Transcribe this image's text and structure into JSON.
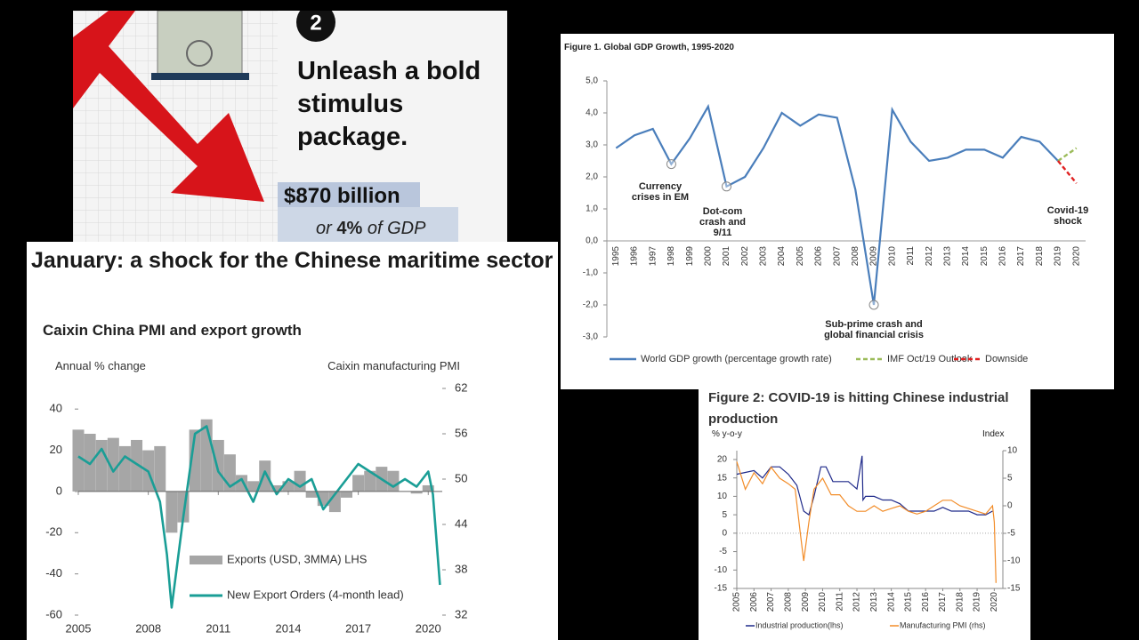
{
  "infographic": {
    "number": "2",
    "headline": "Unleash a bold stimulus package.",
    "amount": "$870 billion",
    "share_prefix": "or",
    "share_value": "4%",
    "share_suffix": "of GDP"
  },
  "chart_data": [
    {
      "type": "bar-line",
      "title": "January: a shock for the Chinese maritime sector",
      "subtitle": "Caixin China PMI and export growth",
      "ylabel": "Annual % change",
      "y2label": "Caixin manufacturing PMI",
      "xlim": [
        2005,
        2020.6
      ],
      "xticks": [
        2005,
        2008,
        2011,
        2014,
        2017,
        2020
      ],
      "ylim": [
        -60,
        50
      ],
      "yticks": [
        40,
        20,
        0,
        -20,
        -40,
        -60
      ],
      "y2lim": [
        32,
        62
      ],
      "y2ticks": [
        62,
        56,
        50,
        44,
        38,
        32
      ],
      "series": [
        {
          "name": "Exports (USD, 3MMA) LHS",
          "color": "#a6a6a6",
          "x": [
            2005,
            2005.5,
            2006,
            2006.5,
            2007,
            2007.5,
            2008,
            2008.5,
            2009,
            2009.5,
            2010,
            2010.5,
            2011,
            2011.5,
            2012,
            2012.5,
            2013,
            2013.5,
            2014,
            2014.5,
            2015,
            2015.5,
            2016,
            2016.5,
            2017,
            2017.5,
            2018,
            2018.5,
            2019,
            2019.5,
            2020
          ],
          "values": [
            30,
            28,
            25,
            26,
            22,
            25,
            20,
            22,
            -20,
            -15,
            30,
            35,
            25,
            18,
            8,
            5,
            15,
            3,
            5,
            10,
            -3,
            -7,
            -10,
            -3,
            8,
            10,
            12,
            10,
            0,
            -1,
            3
          ]
        },
        {
          "name": "New Export Orders (4-month lead)",
          "color": "#1a9e96",
          "axis": "y2",
          "x": [
            2005,
            2005.5,
            2006,
            2006.5,
            2007,
            2007.5,
            2008,
            2008.5,
            2008.8,
            2009,
            2009.5,
            2010,
            2010.5,
            2011,
            2011.5,
            2012,
            2012.5,
            2013,
            2013.5,
            2014,
            2014.5,
            2015,
            2015.5,
            2016,
            2016.5,
            2017,
            2017.5,
            2018,
            2018.5,
            2019,
            2019.5,
            2020,
            2020.2,
            2020.5
          ],
          "values": [
            53,
            52,
            54,
            51,
            53,
            52,
            51,
            47,
            40,
            33,
            45,
            56,
            57,
            51,
            49,
            50,
            47,
            51,
            48,
            50,
            49,
            50,
            46,
            48,
            50,
            52,
            51,
            50,
            49,
            50,
            49,
            51,
            48,
            36
          ]
        }
      ]
    },
    {
      "type": "line",
      "title": "Figure 1. Global GDP Growth, 1995-2020",
      "categories": [
        "1995",
        "1996",
        "1997",
        "1998",
        "1999",
        "2000",
        "2001",
        "2002",
        "2003",
        "2004",
        "2005",
        "2006",
        "2007",
        "2008",
        "2009",
        "2010",
        "2011",
        "2012",
        "2013",
        "2014",
        "2015",
        "2016",
        "2017",
        "2018",
        "2019",
        "2020"
      ],
      "ylim": [
        -3,
        5
      ],
      "yticks": [
        {
          "value": 5,
          "label": "5,0"
        },
        {
          "value": 4,
          "label": "4,0"
        },
        {
          "value": 3,
          "label": "3,0"
        },
        {
          "value": 2,
          "label": "2,0"
        },
        {
          "value": 1,
          "label": "1,0"
        },
        {
          "value": 0,
          "label": "0,0"
        },
        {
          "value": -1,
          "label": "-1,0"
        },
        {
          "value": -2,
          "label": "-2,0"
        },
        {
          "value": -3,
          "label": "-3,0"
        }
      ],
      "annotations": [
        "Currency crises in EM",
        "Dot-com crash and 9/11",
        "Sub-prime  crash and global financial crisis",
        "Covid-19 shock"
      ],
      "series": [
        {
          "name": "World GDP growth (percentage growth rate)",
          "color": "#4a7ebb",
          "values": [
            2.9,
            3.3,
            3.5,
            2.4,
            3.2,
            4.2,
            1.7,
            2.0,
            2.9,
            4.0,
            3.6,
            3.95,
            3.85,
            1.6,
            -2.0,
            4.1,
            3.1,
            2.5,
            2.6,
            2.85,
            2.85,
            2.6,
            3.25,
            3.1,
            2.5,
            null
          ]
        },
        {
          "name": "IMF Oct/19 Outlook",
          "color": "#9bbb59",
          "dashed": true,
          "values": [
            null,
            null,
            null,
            null,
            null,
            null,
            null,
            null,
            null,
            null,
            null,
            null,
            null,
            null,
            null,
            null,
            null,
            null,
            null,
            null,
            null,
            null,
            null,
            null,
            2.5,
            2.9
          ]
        },
        {
          "name": "Downside",
          "color": "#e02020",
          "dashed": true,
          "values": [
            null,
            null,
            null,
            null,
            null,
            null,
            null,
            null,
            null,
            null,
            null,
            null,
            null,
            null,
            null,
            null,
            null,
            null,
            null,
            null,
            null,
            null,
            null,
            null,
            2.5,
            1.8
          ]
        }
      ]
    },
    {
      "type": "line",
      "title": "Figure 2: COVID-19 is hitting Chinese industrial production",
      "ylabel": "% y-o-y",
      "y2label": "Index",
      "xlim": [
        2005,
        2020.5
      ],
      "xticks": [
        2005,
        2006,
        2007,
        2008,
        2009,
        2010,
        2011,
        2012,
        2013,
        2014,
        2015,
        2016,
        2017,
        2018,
        2019,
        2020
      ],
      "ylim": [
        -15,
        22.4
      ],
      "yticks": [
        20,
        15,
        10,
        5,
        0,
        -5,
        -10,
        -15
      ],
      "y2lim": [
        -15,
        10
      ],
      "y2ticks": [
        10,
        5,
        0,
        -5,
        -10,
        -15
      ],
      "series": [
        {
          "name": "Industrial production(lhs)",
          "color": "#1f2a8a",
          "x": [
            2005,
            2005.5,
            2006,
            2006.5,
            2007,
            2007.5,
            2008,
            2008.5,
            2008.9,
            2009.2,
            2009.5,
            2009.9,
            2010.2,
            2010.6,
            2011,
            2011.5,
            2012,
            2012.3,
            2012.35,
            2012.5,
            2013,
            2013.5,
            2014,
            2014.5,
            2015,
            2015.5,
            2016,
            2016.5,
            2017,
            2017.5,
            2018,
            2018.5,
            2019,
            2019.5,
            2019.9
          ],
          "values": [
            16,
            16.5,
            17,
            15,
            18,
            18,
            16,
            13,
            6,
            5,
            10,
            18,
            18,
            14,
            14,
            14,
            12,
            21,
            9,
            10,
            10,
            9,
            9,
            8,
            6,
            6,
            6,
            6,
            7,
            6,
            6,
            6,
            5,
            5,
            6
          ]
        },
        {
          "name": "Manufacturing PMI (rhs)",
          "color": "#f28c28",
          "axis": "y2",
          "x": [
            2005,
            2005.5,
            2006,
            2006.5,
            2007,
            2007.5,
            2008,
            2008.4,
            2008.7,
            2008.9,
            2009.2,
            2009.5,
            2010,
            2010.5,
            2011,
            2011.5,
            2012,
            2012.5,
            2013,
            2013.5,
            2014,
            2014.5,
            2015,
            2015.5,
            2016,
            2016.5,
            2017,
            2017.5,
            2018,
            2018.5,
            2019,
            2019.5,
            2019.9,
            2020,
            2020.1
          ],
          "values": [
            8,
            3,
            6,
            4,
            7,
            5,
            4,
            3,
            -5,
            -10,
            -3,
            3,
            5,
            2,
            2,
            0,
            -1,
            -1,
            0,
            -1,
            -0.5,
            0,
            -1,
            -1.5,
            -1,
            0,
            1,
            1,
            0,
            -0.5,
            -1,
            -1.5,
            0,
            -3,
            -14
          ]
        }
      ]
    }
  ]
}
